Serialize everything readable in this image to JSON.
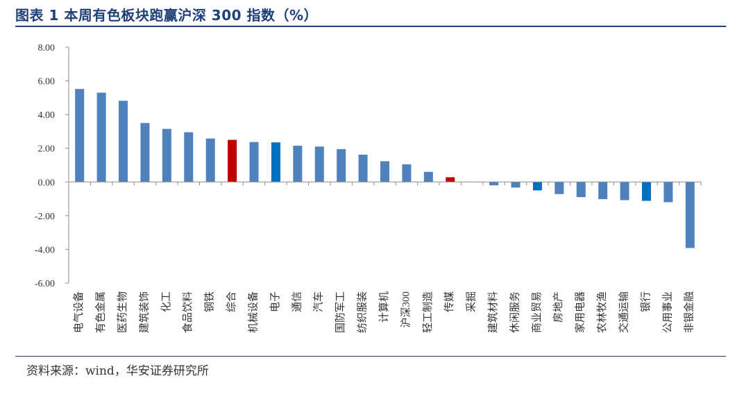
{
  "header": {
    "title": "图表 1 本周有色板块跑赢沪深 300 指数（%）"
  },
  "footer": {
    "source": "资料来源：wind，华安证券研究所"
  },
  "colors": {
    "default_bar": "#4f81bd",
    "highlight_red": "#c00000",
    "highlight_blue": "#0070c0",
    "title": "#1f3f78"
  },
  "chart_data": {
    "type": "bar",
    "title": "",
    "xlabel": "",
    "ylabel": "",
    "ylim": [
      -6,
      8
    ],
    "yticks": [
      "8.00",
      "6.00",
      "4.00",
      "2.00",
      "0.00",
      "-2.00",
      "-4.00",
      "-6.00"
    ],
    "grid": false,
    "legend": "none",
    "categories": [
      "电气设备",
      "有色金属",
      "医药生物",
      "建筑装饰",
      "化工",
      "食品饮料",
      "钢铁",
      "综合",
      "机械设备",
      "电子",
      "通信",
      "汽车",
      "国防军工",
      "纺织服装",
      "计算机",
      "沪深300",
      "轻工制造",
      "传媒",
      "采掘",
      "建筑材料",
      "休闲服务",
      "商业贸易",
      "房地产",
      "家用电器",
      "农林牧渔",
      "交通运输",
      "银行",
      "公用事业",
      "非银金融"
    ],
    "values": [
      5.52,
      5.3,
      4.82,
      3.5,
      3.15,
      2.95,
      2.58,
      2.5,
      2.37,
      2.35,
      2.15,
      2.1,
      1.95,
      1.62,
      1.23,
      1.05,
      0.6,
      0.28,
      0.0,
      -0.2,
      -0.33,
      -0.5,
      -0.72,
      -0.9,
      -1.02,
      -1.08,
      -1.12,
      -1.2,
      -3.92
    ],
    "bar_colors": [
      "#4f81bd",
      "#4f81bd",
      "#4f81bd",
      "#4f81bd",
      "#4f81bd",
      "#4f81bd",
      "#4f81bd",
      "#c00000",
      "#4f81bd",
      "#0070c0",
      "#4f81bd",
      "#4f81bd",
      "#4f81bd",
      "#4f81bd",
      "#4f81bd",
      "#4f81bd",
      "#4f81bd",
      "#c00000",
      "#4f81bd",
      "#4f81bd",
      "#4f81bd",
      "#0070c0",
      "#4f81bd",
      "#4f81bd",
      "#4f81bd",
      "#4f81bd",
      "#0070c0",
      "#4f81bd",
      "#4f81bd"
    ]
  }
}
